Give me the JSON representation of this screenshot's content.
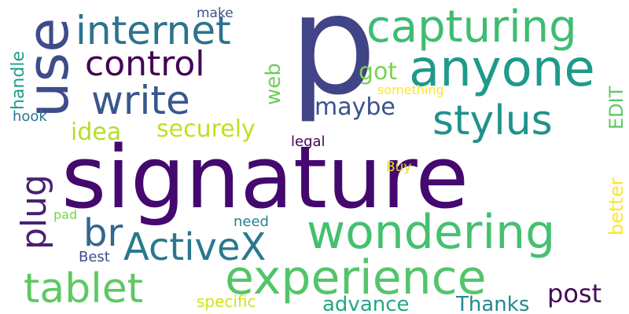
{
  "words": [
    {
      "text": "signature",
      "color": "#45086f"
    },
    {
      "text": "p",
      "color": "#414487"
    },
    {
      "text": "experience",
      "color": "#53c569"
    },
    {
      "text": "wondering",
      "color": "#45c06f"
    },
    {
      "text": "anyone",
      "color": "#1f9a8a"
    },
    {
      "text": "use",
      "color": "#3e4c8a"
    },
    {
      "text": "capturing",
      "color": "#3fbc73"
    },
    {
      "text": "internet",
      "color": "#2c738e"
    },
    {
      "text": "tablet",
      "color": "#5ec962"
    },
    {
      "text": "stylus",
      "color": "#20928c"
    },
    {
      "text": "write",
      "color": "#38588c"
    },
    {
      "text": "control",
      "color": "#440154"
    },
    {
      "text": "ActiveX",
      "color": "#2a788e"
    },
    {
      "text": "br",
      "color": "#31688e"
    },
    {
      "text": "plug",
      "color": "#482173"
    },
    {
      "text": "securely",
      "color": "#c2df23"
    },
    {
      "text": "idea",
      "color": "#b5de2b"
    },
    {
      "text": "post",
      "color": "#46075a"
    },
    {
      "text": "maybe",
      "color": "#3b528b"
    },
    {
      "text": "got",
      "color": "#7ad151"
    },
    {
      "text": "advance",
      "color": "#22a785"
    },
    {
      "text": "Thanks",
      "color": "#23898e"
    },
    {
      "text": "handle",
      "color": "#1f9e89"
    },
    {
      "text": "web",
      "color": "#6ccd5a"
    },
    {
      "text": "better",
      "color": "#fde725"
    },
    {
      "text": "EDIT",
      "color": "#5ec962"
    },
    {
      "text": "specific",
      "color": "#d2e21b"
    },
    {
      "text": "hook",
      "color": "#2a788e"
    },
    {
      "text": "Best",
      "color": "#3e4c8a"
    },
    {
      "text": "need",
      "color": "#26828e"
    },
    {
      "text": "legal",
      "color": "#440154"
    },
    {
      "text": "pad",
      "color": "#7ad151"
    },
    {
      "text": "make",
      "color": "#3b528b"
    },
    {
      "text": "something",
      "color": "#fde725"
    },
    {
      "text": "Buy",
      "color": "#dfe318"
    }
  ]
}
